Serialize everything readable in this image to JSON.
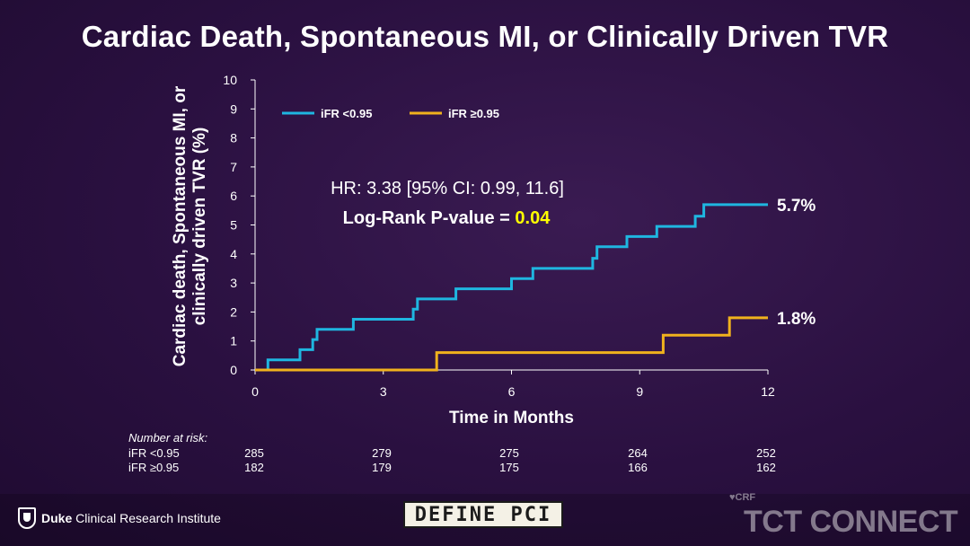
{
  "title": "Cardiac Death, Spontaneous MI, or Clinically Driven TVR",
  "risk_table": {
    "header": "Number at risk:",
    "rows": [
      {
        "name": "iFR <0.95",
        "values": [
          "285",
          "279",
          "275",
          "264",
          "252"
        ]
      },
      {
        "name": "iFR ≥0.95",
        "values": [
          "182",
          "179",
          "175",
          "166",
          "162"
        ]
      }
    ]
  },
  "footer": {
    "institute_bold": "Duke",
    "institute_rest": " Clinical Research Institute",
    "trial_logo_text": "DEFINE PCI",
    "crf_text": "♥CRF",
    "conference_text": "TCT CONNECT"
  },
  "chart_data": {
    "type": "line",
    "step": true,
    "xlabel": "Time in Months",
    "ylabel": "Cardiac death, Spontaneous MI, or clinically driven TVR (%)",
    "xlim": [
      0,
      12
    ],
    "ylim": [
      0,
      10
    ],
    "xticks": [
      0,
      3,
      6,
      9,
      12
    ],
    "yticks": [
      0,
      1,
      2,
      3,
      4,
      5,
      6,
      7,
      8,
      9,
      10
    ],
    "grid": false,
    "legend_position": "top-left",
    "annotations": [
      {
        "text": "HR: 3.38 [95% CI: 0.99, 11.6]"
      },
      {
        "text": "Log-Rank P-value = ",
        "highlight": "0.04",
        "highlight_color": "#ffff00"
      }
    ],
    "series": [
      {
        "name": "iFR <0.95",
        "color": "#1fb6e0",
        "end_label": "5.7%",
        "points": [
          [
            0,
            0
          ],
          [
            0.3,
            0
          ],
          [
            0.3,
            0.35
          ],
          [
            1.05,
            0.35
          ],
          [
            1.05,
            0.7
          ],
          [
            1.35,
            0.7
          ],
          [
            1.35,
            1.05
          ],
          [
            1.45,
            1.05
          ],
          [
            1.45,
            1.4
          ],
          [
            2.3,
            1.4
          ],
          [
            2.3,
            1.75
          ],
          [
            3.7,
            1.75
          ],
          [
            3.7,
            2.1
          ],
          [
            3.8,
            2.1
          ],
          [
            3.8,
            2.45
          ],
          [
            4.7,
            2.45
          ],
          [
            4.7,
            2.8
          ],
          [
            6.0,
            2.8
          ],
          [
            6.0,
            3.15
          ],
          [
            6.5,
            3.15
          ],
          [
            6.5,
            3.5
          ],
          [
            7.9,
            3.5
          ],
          [
            7.9,
            3.85
          ],
          [
            8.0,
            3.85
          ],
          [
            8.0,
            4.25
          ],
          [
            8.7,
            4.25
          ],
          [
            8.7,
            4.6
          ],
          [
            9.4,
            4.6
          ],
          [
            9.4,
            4.95
          ],
          [
            10.3,
            4.95
          ],
          [
            10.3,
            5.3
          ],
          [
            10.5,
            5.3
          ],
          [
            10.5,
            5.7
          ],
          [
            12,
            5.7
          ]
        ]
      },
      {
        "name": "iFR ≥0.95",
        "color": "#f0b21d",
        "end_label": "1.8%",
        "points": [
          [
            0,
            0
          ],
          [
            4.25,
            0
          ],
          [
            4.25,
            0.6
          ],
          [
            9.55,
            0.6
          ],
          [
            9.55,
            1.2
          ],
          [
            11.1,
            1.2
          ],
          [
            11.1,
            1.8
          ],
          [
            12,
            1.8
          ]
        ]
      }
    ]
  }
}
